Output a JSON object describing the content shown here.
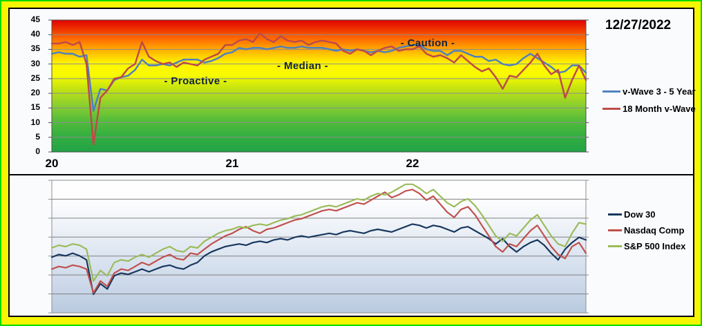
{
  "window": {
    "border_color": "#00d900",
    "frame_color": "#f6f600",
    "panel_bg": "#fafbfd"
  },
  "chart_data": [
    {
      "id": "vwave",
      "type": "line",
      "title": "",
      "date_label": "12/27/2022",
      "legend_position": "right",
      "background_gradient": [
        "#e10000 0%",
        "#ff7100 15%",
        "#ffc000 25%",
        "#fff600 33%",
        "#f8fa00 42%",
        "#bfe112 53%",
        "#8ed02e 64%",
        "#55bd3a 76%",
        "#33ae40 88%",
        "#21a346 100%"
      ],
      "annotations": [
        {
          "text": "- Proactive -"
        },
        {
          "text": "- Median -"
        },
        {
          "text": "- Caution -"
        }
      ],
      "x_axis": {
        "n_points": 78,
        "ticks": [
          {
            "pos": 0,
            "label": "20"
          },
          {
            "pos": 26,
            "label": "21"
          },
          {
            "pos": 52,
            "label": "22"
          }
        ]
      },
      "y_axis": {
        "min": 0,
        "max": 45,
        "tick_step": 5,
        "tick_labels": [
          "0",
          "5",
          "10",
          "15",
          "20",
          "25",
          "30",
          "35",
          "40",
          "45"
        ]
      },
      "series": [
        {
          "name": "v-Wave 3 - 5 Year",
          "color": "#4f81bd",
          "values": [
            33.5,
            34,
            33.5,
            33.5,
            32.5,
            33,
            14,
            21.5,
            21,
            24.5,
            25.5,
            26,
            28,
            31.5,
            29.5,
            29.5,
            30,
            29.5,
            30.5,
            31.5,
            31.5,
            31.5,
            30.5,
            31,
            32,
            33.5,
            34,
            35.5,
            35,
            35.5,
            35.5,
            35,
            35.5,
            36,
            35.5,
            35.5,
            36,
            35.5,
            35.5,
            35.5,
            35,
            34.5,
            35,
            34.5,
            35,
            34.5,
            34,
            34.5,
            34,
            34.5,
            35.5,
            36,
            36.5,
            36.5,
            35,
            34.5,
            34.5,
            33,
            34.5,
            34.5,
            33.5,
            32.5,
            32.5,
            31,
            31.5,
            30,
            29.5,
            30,
            32,
            33.5,
            32,
            30.5,
            29,
            27,
            27.5,
            29.5,
            29.5,
            27
          ]
        },
        {
          "name": "18 Month v-Wave",
          "color": "#be4b48",
          "values": [
            37,
            37,
            37.5,
            36.5,
            37.5,
            30,
            2.5,
            18.5,
            21,
            25,
            25.5,
            28.5,
            30,
            37.5,
            32.5,
            31,
            30,
            30.5,
            29,
            30.5,
            30,
            29.5,
            31.5,
            32.5,
            33.5,
            36.5,
            36.5,
            38,
            38.5,
            37.5,
            40.5,
            38.5,
            37.5,
            39.5,
            38,
            37.5,
            38,
            36.5,
            37.5,
            38,
            37.5,
            37,
            34.5,
            33.5,
            35,
            34.5,
            33,
            34.5,
            35.5,
            36,
            34.5,
            35,
            35,
            36,
            33.5,
            32.5,
            33,
            32,
            30.5,
            33,
            31,
            29,
            27.5,
            28.5,
            25.5,
            21.5,
            26,
            25.5,
            28,
            30.5,
            33.5,
            29.5,
            26.5,
            28,
            18.5,
            24.5,
            29.5,
            24.5
          ]
        }
      ]
    },
    {
      "id": "indexes",
      "type": "line",
      "title": "",
      "legend_position": "right",
      "background_gradient": [
        "#ffffff 0%",
        "#fdfdfe 15%",
        "#eef2f8 35%",
        "#dde6f1 55%",
        "#cdd9ea 78%",
        "#b9cadf 100%"
      ],
      "y_axis": {
        "min": 0,
        "max": 100,
        "gridline_count": 8
      },
      "series": [
        {
          "name": "Dow 30",
          "color": "#17375e",
          "values": [
            42,
            44,
            43,
            45,
            43,
            40,
            14,
            22,
            18,
            28,
            30,
            29,
            31,
            33,
            31,
            33,
            35,
            36,
            34,
            33,
            36,
            38,
            43,
            46,
            48,
            50,
            51,
            52,
            51,
            53,
            54,
            53,
            55,
            56,
            55,
            57,
            58,
            57,
            58,
            59,
            60,
            59,
            61,
            62,
            61,
            60,
            62,
            63,
            62,
            61,
            63,
            65,
            67,
            66,
            64,
            66,
            65,
            63,
            61,
            64,
            65,
            62,
            59,
            56,
            52,
            56,
            50,
            46,
            50,
            53,
            55,
            51,
            45,
            40,
            48,
            53,
            57,
            55
          ]
        },
        {
          "name": "Nasdaq Comp",
          "color": "#c0504d",
          "values": [
            33,
            35,
            34,
            36,
            35,
            33,
            15,
            24,
            20,
            30,
            33,
            32,
            35,
            38,
            36,
            39,
            42,
            44,
            41,
            40,
            45,
            44,
            48,
            52,
            55,
            58,
            60,
            63,
            65,
            62,
            60,
            63,
            64,
            66,
            68,
            70,
            71,
            73,
            75,
            77,
            78,
            77,
            79,
            81,
            83,
            82,
            85,
            88,
            91,
            87,
            89,
            92,
            93,
            90,
            85,
            88,
            82,
            76,
            72,
            78,
            80,
            74,
            66,
            58,
            50,
            46,
            52,
            50,
            56,
            62,
            66,
            58,
            50,
            44,
            41,
            50,
            53,
            45
          ]
        },
        {
          "name": "S&P 500 Index",
          "color": "#9bbb59",
          "values": [
            49,
            51,
            50,
            52,
            51,
            48,
            24,
            32,
            28,
            38,
            40,
            39,
            42,
            44,
            42,
            45,
            48,
            50,
            47,
            46,
            50,
            49,
            54,
            57,
            60,
            62,
            63,
            65,
            64,
            66,
            67,
            66,
            68,
            70,
            71,
            73,
            74,
            76,
            78,
            80,
            81,
            80,
            82,
            84,
            86,
            85,
            88,
            90,
            89,
            91,
            94,
            97,
            97,
            94,
            90,
            93,
            88,
            83,
            80,
            84,
            86,
            81,
            74,
            66,
            58,
            54,
            60,
            58,
            64,
            70,
            74,
            66,
            58,
            52,
            50,
            60,
            68,
            67
          ]
        }
      ]
    }
  ]
}
